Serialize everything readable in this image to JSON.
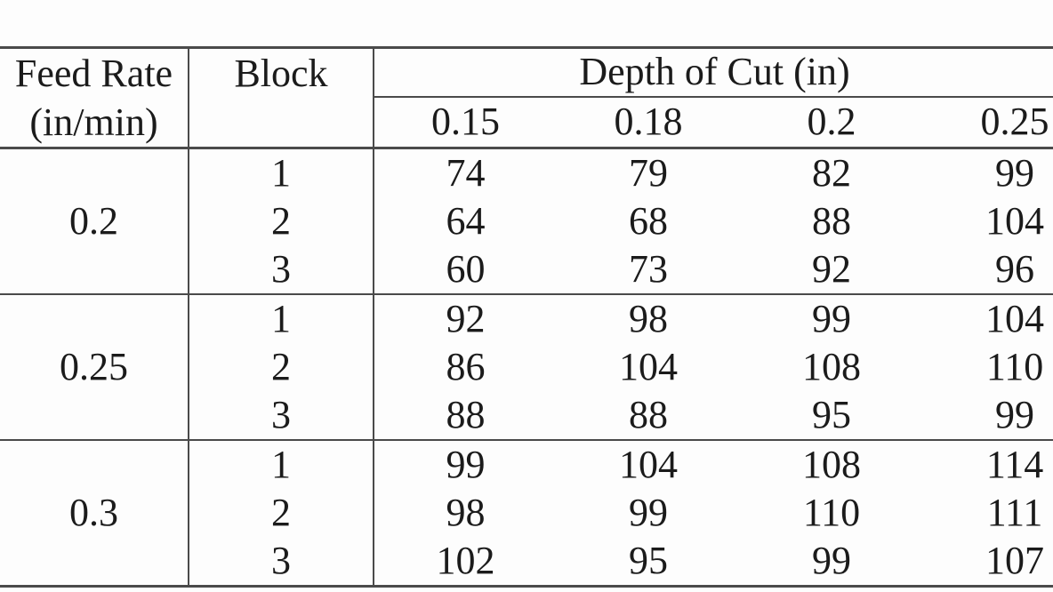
{
  "colors": {
    "rule": "#4a4a4a",
    "text": "#1b1b1b",
    "background": "#fdfdfd"
  },
  "table": {
    "header": {
      "feed_rate_line1": "Feed Rate",
      "feed_rate_line2": "(in/min)",
      "block": "Block",
      "depth_of_cut": "Depth of Cut (in)",
      "depth_levels": [
        "0.15",
        "0.18",
        "0.2",
        "0.25"
      ]
    },
    "groups": [
      {
        "feed_rate": "0.2",
        "rows": [
          {
            "block": "1",
            "values": [
              "74",
              "79",
              "82",
              "99"
            ]
          },
          {
            "block": "2",
            "values": [
              "64",
              "68",
              "88",
              "104"
            ]
          },
          {
            "block": "3",
            "values": [
              "60",
              "73",
              "92",
              "96"
            ]
          }
        ]
      },
      {
        "feed_rate": "0.25",
        "rows": [
          {
            "block": "1",
            "values": [
              "92",
              "98",
              "99",
              "104"
            ]
          },
          {
            "block": "2",
            "values": [
              "86",
              "104",
              "108",
              "110"
            ]
          },
          {
            "block": "3",
            "values": [
              "88",
              "88",
              "95",
              "99"
            ]
          }
        ]
      },
      {
        "feed_rate": "0.3",
        "rows": [
          {
            "block": "1",
            "values": [
              "99",
              "104",
              "108",
              "114"
            ]
          },
          {
            "block": "2",
            "values": [
              "98",
              "99",
              "110",
              "111"
            ]
          },
          {
            "block": "3",
            "values": [
              "102",
              "95",
              "99",
              "107"
            ]
          }
        ]
      }
    ]
  },
  "chart_data": {
    "type": "table",
    "row_factor": "Feed Rate (in/min)",
    "block_factor": "Block",
    "column_factor": "Depth of Cut (in)",
    "column_levels": [
      0.15,
      0.18,
      0.2,
      0.25
    ],
    "rows": [
      {
        "feed_rate": 0.2,
        "block": 1,
        "values": [
          74,
          79,
          82,
          99
        ]
      },
      {
        "feed_rate": 0.2,
        "block": 2,
        "values": [
          64,
          68,
          88,
          104
        ]
      },
      {
        "feed_rate": 0.2,
        "block": 3,
        "values": [
          60,
          73,
          92,
          96
        ]
      },
      {
        "feed_rate": 0.25,
        "block": 1,
        "values": [
          92,
          98,
          99,
          104
        ]
      },
      {
        "feed_rate": 0.25,
        "block": 2,
        "values": [
          86,
          104,
          108,
          110
        ]
      },
      {
        "feed_rate": 0.25,
        "block": 3,
        "values": [
          88,
          88,
          95,
          99
        ]
      },
      {
        "feed_rate": 0.3,
        "block": 1,
        "values": [
          99,
          104,
          108,
          114
        ]
      },
      {
        "feed_rate": 0.3,
        "block": 2,
        "values": [
          98,
          99,
          110,
          111
        ]
      },
      {
        "feed_rate": 0.3,
        "block": 3,
        "values": [
          102,
          95,
          99,
          107
        ]
      }
    ]
  }
}
